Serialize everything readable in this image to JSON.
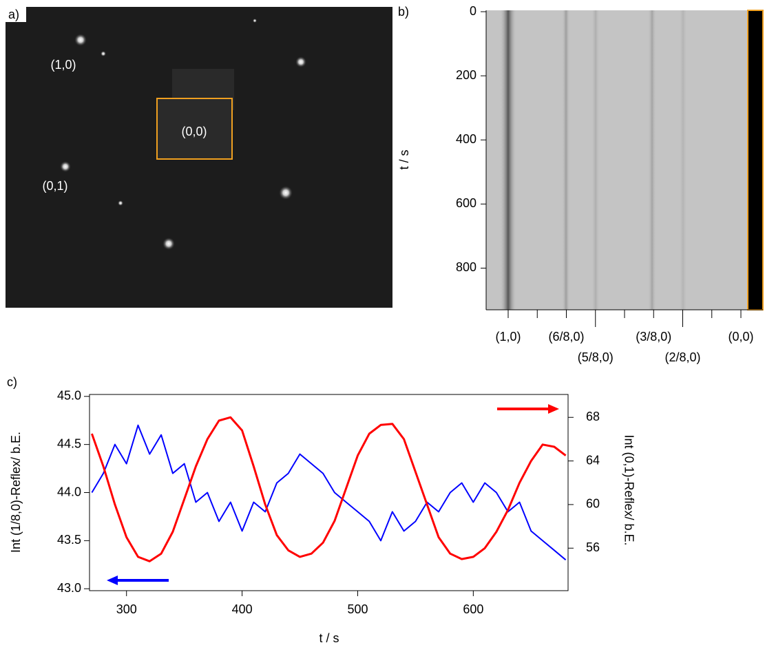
{
  "chart_data": [
    {
      "type": "photo",
      "panel_label": "a)",
      "annotations": [
        "(1,0)",
        "(0,0)",
        "(0,1)"
      ]
    },
    {
      "type": "heatmap",
      "panel_label": "b)",
      "ylabel": "t / s",
      "ylim": [
        0,
        930
      ],
      "yticks": [
        0,
        200,
        400,
        600,
        800
      ],
      "categories": [
        "(1,0)",
        null,
        "(6/8,0)",
        "(5/8,0)",
        null,
        "(3/8,0)",
        "(2/8,0)",
        null,
        "(0,0)"
      ]
    },
    {
      "type": "line",
      "panel_label": "c)",
      "xlabel": "t / s",
      "ylabel": "Int (1/8,0)-Reflex/ b.E.",
      "y2label": "Int (0,1)-Reflex/ b.E.",
      "xlim": [
        268,
        682
      ],
      "xticks": [
        300,
        400,
        500,
        600
      ],
      "ylim": [
        42.98,
        45.02
      ],
      "yticks": [
        {
          "value": 43,
          "label": "43.0"
        },
        43.5,
        {
          "value": 44,
          "label": "44.0"
        },
        44.5,
        {
          "value": 45,
          "label": "45.0"
        }
      ],
      "y2lim": [
        52.1,
        70.1
      ],
      "y2ticks": [
        56,
        60,
        64,
        68
      ],
      "x": [
        270,
        280,
        290,
        300,
        310,
        320,
        330,
        340,
        350,
        360,
        370,
        380,
        390,
        400,
        410,
        420,
        430,
        440,
        450,
        460,
        470,
        480,
        490,
        500,
        510,
        520,
        530,
        540,
        550,
        560,
        570,
        580,
        590,
        600,
        610,
        620,
        630,
        640,
        650,
        660,
        670,
        680
      ],
      "series": [
        {
          "name": "Int (1/8,0)",
          "color": "#0000ff",
          "values": [
            44.0,
            44.2,
            44.5,
            44.3,
            44.7,
            44.4,
            44.6,
            44.2,
            44.3,
            43.9,
            44.0,
            43.7,
            43.9,
            43.6,
            43.9,
            43.8,
            44.1,
            44.2,
            44.4,
            44.3,
            44.2,
            44.0,
            43.9,
            43.8,
            43.7,
            43.5,
            43.8,
            43.6,
            43.7,
            43.9,
            43.8,
            44.0,
            44.1,
            43.9,
            44.1,
            44.0,
            43.8,
            43.9,
            43.6,
            43.5,
            43.4,
            43.3
          ]
        },
        {
          "name": "Int (0,1)",
          "color": "#ff0000",
          "axis": "y2",
          "values": [
            66.5,
            63.5,
            60,
            57,
            55.2,
            54.8,
            55.5,
            57.5,
            60.5,
            63.5,
            66,
            67.7,
            68,
            66.8,
            63.5,
            60,
            57.2,
            55.8,
            55.2,
            55.5,
            56.5,
            58.5,
            61.5,
            64.5,
            66.5,
            67.3,
            67.4,
            66,
            63,
            60,
            57,
            55.5,
            55,
            55.2,
            56,
            57.5,
            59.5,
            62,
            64,
            65.5,
            65.3,
            64.5
          ]
        }
      ]
    }
  ]
}
